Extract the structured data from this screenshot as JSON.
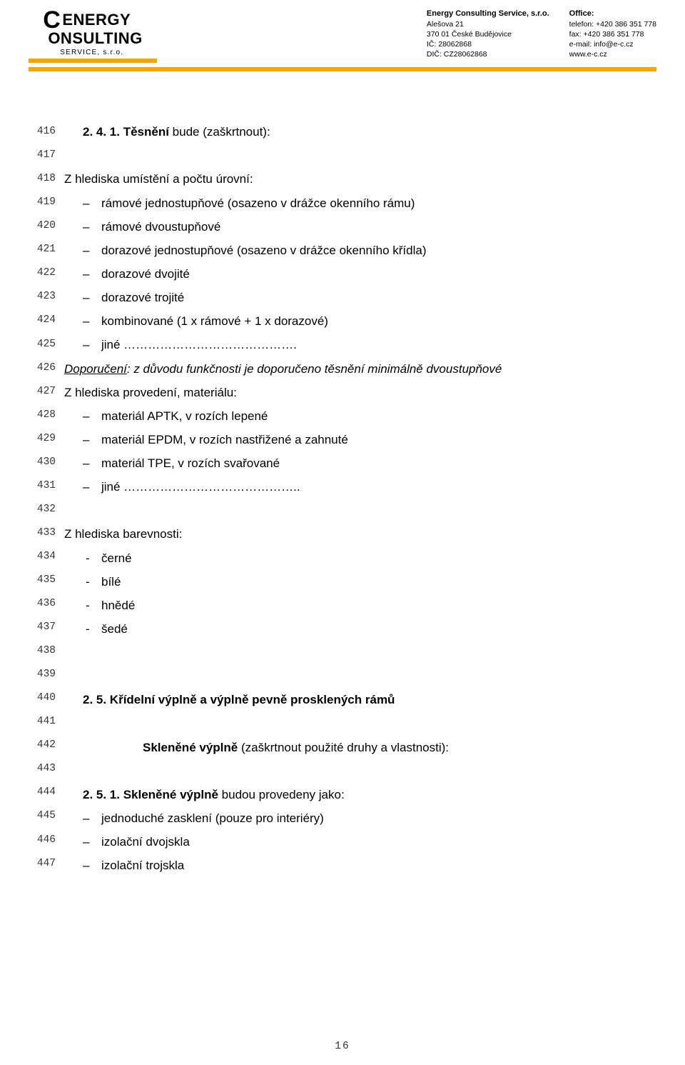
{
  "header": {
    "logo_line1": "ENERGY",
    "logo_line2": "ONSULTING",
    "logo_sub": "SERVICE, s.r.o.",
    "band_color": "#f7a600",
    "contact_left": {
      "title": "Energy Consulting Service, s.r.o.",
      "l1": "Alešova 21",
      "l2": "370 01 České Budějovice",
      "l3": "IČ: 28062868",
      "l4": "DIČ: CZ28062868"
    },
    "contact_right": {
      "title": "Office:",
      "l1": "telefon: +420 386 351 778",
      "l2": "fax: +420 386 351 778",
      "l3": "e-mail: info@e-c.cz",
      "l4": "www.e-c.cz"
    }
  },
  "line_numbers": [
    416,
    417,
    418,
    419,
    420,
    421,
    422,
    423,
    424,
    425,
    426,
    427,
    428,
    429,
    430,
    431,
    432,
    433,
    434,
    435,
    436,
    437,
    438,
    439,
    440,
    441,
    442,
    443,
    444,
    445,
    446,
    447
  ],
  "lines": {
    "l416_prefix": "2. 4. 1. Těsnění",
    "l416_suffix": " bude (zaškrtnout):",
    "l418": "Z hlediska umístění a počtu úrovní:",
    "l419": "rámové jednostupňové (osazeno v drážce okenního rámu)",
    "l420": "rámové dvoustupňové",
    "l421": "dorazové jednostupňové (osazeno v drážce okenního křídla)",
    "l422": "dorazové dvojité",
    "l423": "dorazové trojité",
    "l424": "kombinované (1 x rámové + 1 x dorazové)",
    "l425": "jiné …………………………………….",
    "l426_u": "Doporučení",
    "l426_rest": ": z důvodu funkčnosti je doporučeno těsnění minimálně dvoustupňové",
    "l427": "Z hlediska provedení, materiálu:",
    "l428": "materiál APTK, v rozích lepené",
    "l429": "materiál EPDM, v rozích nastřižené a zahnuté",
    "l430": "materiál TPE, v rozích svařované",
    "l431": "jiné ……………………………………..",
    "l433": "Z hlediska barevnosti:",
    "l434": "černé",
    "l435": "bílé",
    "l436": "hnědé",
    "l437": "šedé",
    "l440": "2. 5. Křídelní výplně a výplně pevně prosklených rámů",
    "l442_prefix": "Skleněné výplně",
    "l442_suffix": " (zaškrtnout použité druhy a vlastnosti):",
    "l444_prefix": "2. 5. 1. Skleněné výplně",
    "l444_suffix": " budou provedeny jako:",
    "l445": "jednoduché zasklení (pouze pro interiéry)",
    "l446": "izolační dvojskla",
    "l447": "izolační trojskla"
  },
  "page_number": "16"
}
